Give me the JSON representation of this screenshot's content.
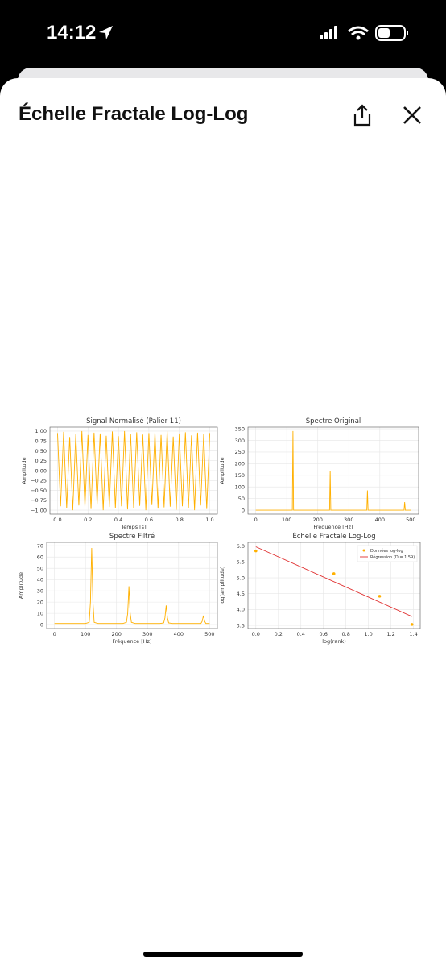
{
  "status_bar": {
    "time": "14:12"
  },
  "header": {
    "title": "Échelle Fractale Log-Log"
  },
  "chart_data": [
    {
      "type": "line",
      "title": "Signal Normalisé (Palier 11)",
      "x_label": "Temps [s]",
      "y_label": "Amplitude",
      "color": "#ffb000",
      "grid": true,
      "x": [
        0,
        0.02,
        0.04,
        0.06,
        0.08,
        0.1,
        0.12,
        0.14,
        0.16,
        0.18,
        0.2,
        0.22,
        0.24,
        0.26,
        0.28,
        0.3,
        0.32,
        0.34,
        0.36,
        0.38,
        0.4,
        0.42,
        0.44,
        0.46,
        0.48,
        0.5,
        0.52,
        0.54,
        0.56,
        0.58,
        0.6,
        0.62,
        0.64,
        0.66,
        0.68,
        0.7,
        0.72,
        0.74,
        0.76,
        0.78,
        0.8,
        0.82,
        0.84,
        0.86,
        0.88,
        0.9,
        0.92,
        0.94,
        0.96,
        0.98,
        1
      ],
      "values": [
        0.95,
        -0.9,
        0.98,
        -0.95,
        0.85,
        -1,
        0.92,
        -0.88,
        1,
        -0.93,
        0.9,
        -0.97,
        0.96,
        -0.86,
        0.94,
        -1,
        0.88,
        -0.92,
        0.99,
        -0.95,
        0.87,
        -0.9,
        1,
        -0.98,
        0.93,
        -0.94,
        0.97,
        -0.89,
        0.91,
        -1,
        0.95,
        -0.87,
        0.98,
        -0.96,
        0.9,
        -0.93,
        1,
        -0.91,
        0.86,
        -0.99,
        0.94,
        -0.9,
        0.97,
        -0.95,
        0.89,
        -1,
        0.96,
        -0.88,
        0.92,
        -0.97,
        0.95
      ],
      "xlim": [
        -0.05,
        1.05
      ],
      "xticks": [
        {
          "value": 0,
          "label": "0.0"
        },
        0.2,
        0.4,
        0.6,
        0.8,
        {
          "value": 1,
          "label": "1.0"
        }
      ],
      "ylim": [
        -1.1,
        1.1
      ],
      "yticks": [
        {
          "value": -1,
          "label": "−1.00"
        },
        {
          "value": -0.75,
          "label": "−0.75"
        },
        {
          "value": -0.5,
          "label": "−0.50"
        },
        {
          "value": -0.25,
          "label": "−0.25"
        },
        {
          "value": 0,
          "label": "0.00"
        },
        {
          "value": 0.25,
          "label": "0.25"
        },
        {
          "value": 0.5,
          "label": "0.50"
        },
        {
          "value": 0.75,
          "label": "0.75"
        },
        {
          "value": 1,
          "label": "1.00"
        }
      ]
    },
    {
      "type": "line",
      "title": "Spectre Original",
      "x_label": "Fréquence [Hz]",
      "y_label": "Amplitude",
      "color": "#ffb000",
      "grid": true,
      "x": [
        0,
        118,
        120,
        122,
        238,
        240,
        242,
        358,
        360,
        362,
        478,
        480,
        482,
        500
      ],
      "values": [
        0,
        0,
        340,
        0,
        0,
        170,
        0,
        0,
        85,
        0,
        0,
        35,
        0,
        0
      ],
      "xlim": [
        -25,
        525
      ],
      "xticks": [
        0,
        100,
        200,
        300,
        400,
        500
      ],
      "ylim": [
        -17,
        357
      ],
      "yticks": [
        0,
        50,
        100,
        150,
        200,
        250,
        300,
        350
      ]
    },
    {
      "type": "line",
      "title": "Spectre Filtré",
      "x_label": "Fréquence [Hz]",
      "y_label": "Amplitude",
      "color": "#ffb000",
      "grid": true,
      "x": [
        0,
        100,
        112,
        116,
        120,
        124,
        128,
        140,
        220,
        232,
        236,
        240,
        244,
        248,
        260,
        340,
        352,
        356,
        360,
        364,
        368,
        380,
        460,
        472,
        476,
        480,
        484,
        488,
        500
      ],
      "values": [
        1,
        1,
        2,
        20,
        68,
        20,
        2,
        1,
        1,
        2,
        10,
        34,
        10,
        2,
        1,
        1,
        1.5,
        6,
        17,
        6,
        1.5,
        1,
        1,
        1,
        3,
        8,
        3,
        1,
        1
      ],
      "xlim": [
        -25,
        525
      ],
      "xticks": [
        0,
        100,
        200,
        300,
        400,
        500
      ],
      "ylim": [
        -3.5,
        73
      ],
      "yticks": [
        0,
        10,
        20,
        30,
        40,
        50,
        60,
        70
      ]
    },
    {
      "type": "scatter",
      "title": "Échelle Fractale Log-Log",
      "x_label": "log(rank)",
      "y_label": "log(amplitude)",
      "grid": true,
      "legend": "upper right",
      "series": [
        {
          "name": "Données log-log",
          "color": "#ffb000",
          "style": "points",
          "x": [
            0,
            0.693,
            1.099,
            1.386
          ],
          "values": [
            5.85,
            5.13,
            4.42,
            3.53
          ]
        },
        {
          "name": "Régression (D = 1.59)",
          "color": "#e03030",
          "style": "line",
          "x": [
            0,
            1.386
          ],
          "values": [
            5.98,
            3.78
          ]
        }
      ],
      "xlim": [
        -0.07,
        1.46
      ],
      "xticks": [
        {
          "value": 0,
          "label": "0.0"
        },
        0.2,
        0.4,
        0.6,
        0.8,
        {
          "value": 1,
          "label": "1.0"
        },
        1.2,
        1.4
      ],
      "ylim": [
        3.4,
        6.12
      ],
      "yticks": [
        3.5,
        {
          "value": 4,
          "label": "4.0"
        },
        4.5,
        {
          "value": 5,
          "label": "5.0"
        },
        5.5,
        {
          "value": 6,
          "label": "6.0"
        }
      ]
    }
  ]
}
